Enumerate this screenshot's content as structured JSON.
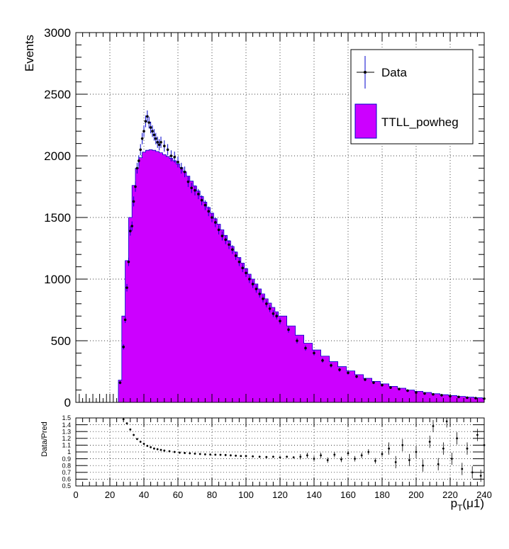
{
  "chart_data": [
    {
      "type": "bar",
      "subtype": "histogram-with-data-points",
      "title": "",
      "xlabel": "",
      "ylabel": "Events",
      "xlim": [
        0,
        240
      ],
      "ylim": [
        0,
        3000
      ],
      "x_ticks": [
        0,
        20,
        40,
        60,
        80,
        100,
        120,
        140,
        160,
        180,
        200,
        220,
        240
      ],
      "y_ticks": [
        0,
        500,
        1000,
        1500,
        2000,
        2500,
        3000
      ],
      "grid": true,
      "legend": {
        "position": "top-right",
        "entries": [
          "Data",
          "TTLL_powheg"
        ]
      },
      "series": [
        {
          "name": "TTLL_powheg",
          "style": "filled-histogram",
          "color": "#cc00ff",
          "points": [
            [
              26,
              180
            ],
            [
              28,
              700
            ],
            [
              30,
              1150
            ],
            [
              32,
              1500
            ],
            [
              34,
              1760
            ],
            [
              36,
              1900
            ],
            [
              38,
              1985
            ],
            [
              40,
              2030
            ],
            [
              42,
              2045
            ],
            [
              44,
              2050
            ],
            [
              46,
              2045
            ],
            [
              48,
              2035
            ],
            [
              50,
              2025
            ],
            [
              52,
              2010
            ],
            [
              54,
              1995
            ],
            [
              56,
              1980
            ],
            [
              58,
              1960
            ],
            [
              60,
              1935
            ],
            [
              62,
              1905
            ],
            [
              64,
              1870
            ],
            [
              66,
              1835
            ],
            [
              68,
              1795
            ],
            [
              70,
              1755
            ],
            [
              72,
              1715
            ],
            [
              74,
              1670
            ],
            [
              76,
              1625
            ],
            [
              78,
              1580
            ],
            [
              80,
              1535
            ],
            [
              82,
              1490
            ],
            [
              84,
              1445
            ],
            [
              86,
              1400
            ],
            [
              88,
              1355
            ],
            [
              90,
              1310
            ],
            [
              92,
              1265
            ],
            [
              94,
              1220
            ],
            [
              96,
              1175
            ],
            [
              98,
              1130
            ],
            [
              100,
              1085
            ],
            [
              102,
              1040
            ],
            [
              104,
              1000
            ],
            [
              106,
              960
            ],
            [
              108,
              920
            ],
            [
              110,
              880
            ],
            [
              112,
              840
            ],
            [
              114,
              805
            ],
            [
              116,
              770
            ],
            [
              118,
              735
            ],
            [
              120,
              700
            ],
            [
              125,
              620
            ],
            [
              130,
              545
            ],
            [
              135,
              480
            ],
            [
              140,
              425
            ],
            [
              145,
              375
            ],
            [
              150,
              330
            ],
            [
              155,
              290
            ],
            [
              160,
              255
            ],
            [
              165,
              225
            ],
            [
              170,
              195
            ],
            [
              175,
              170
            ],
            [
              180,
              150
            ],
            [
              185,
              130
            ],
            [
              190,
              115
            ],
            [
              195,
              100
            ],
            [
              200,
              90
            ],
            [
              205,
              80
            ],
            [
              210,
              70
            ],
            [
              215,
              62
            ],
            [
              220,
              55
            ],
            [
              225,
              48
            ],
            [
              230,
              42
            ],
            [
              235,
              37
            ],
            [
              240,
              33
            ]
          ]
        },
        {
          "name": "Data",
          "style": "markers-with-errorbars",
          "color": "#000000",
          "errorbar_color": "#0000cc",
          "points": [
            [
              26,
              160
            ],
            [
              28,
              450
            ],
            [
              29,
              670
            ],
            [
              30,
              930
            ],
            [
              31,
              1140
            ],
            [
              32,
              1390
            ],
            [
              33,
              1430
            ],
            [
              34,
              1630
            ],
            [
              35,
              1750
            ],
            [
              36,
              1900
            ],
            [
              37,
              1960
            ],
            [
              38,
              2050
            ],
            [
              39,
              2140
            ],
            [
              40,
              2200
            ],
            [
              41,
              2280
            ],
            [
              42,
              2320
            ],
            [
              43,
              2270
            ],
            [
              44,
              2230
            ],
            [
              45,
              2200
            ],
            [
              46,
              2170
            ],
            [
              47,
              2140
            ],
            [
              48,
              2110
            ],
            [
              49,
              2090
            ],
            [
              50,
              2110
            ],
            [
              52,
              2080
            ],
            [
              54,
              2050
            ],
            [
              56,
              2000
            ],
            [
              58,
              1990
            ],
            [
              60,
              1950
            ],
            [
              62,
              1900
            ],
            [
              64,
              1870
            ],
            [
              66,
              1790
            ],
            [
              68,
              1740
            ],
            [
              70,
              1720
            ],
            [
              72,
              1690
            ],
            [
              74,
              1640
            ],
            [
              76,
              1600
            ],
            [
              78,
              1550
            ],
            [
              80,
              1500
            ],
            [
              82,
              1460
            ],
            [
              84,
              1400
            ],
            [
              86,
              1350
            ],
            [
              88,
              1320
            ],
            [
              90,
              1280
            ],
            [
              92,
              1240
            ],
            [
              94,
              1190
            ],
            [
              96,
              1140
            ],
            [
              98,
              1090
            ],
            [
              100,
              1050
            ],
            [
              102,
              1000
            ],
            [
              104,
              960
            ],
            [
              106,
              920
            ],
            [
              108,
              880
            ],
            [
              110,
              840
            ],
            [
              112,
              800
            ],
            [
              114,
              760
            ],
            [
              116,
              720
            ],
            [
              118,
              700
            ],
            [
              120,
              660
            ],
            [
              125,
              590
            ],
            [
              130,
              500
            ],
            [
              135,
              440
            ],
            [
              140,
              400
            ],
            [
              145,
              340
            ],
            [
              150,
              300
            ],
            [
              155,
              265
            ],
            [
              160,
              240
            ],
            [
              165,
              210
            ],
            [
              170,
              185
            ],
            [
              175,
              160
            ],
            [
              180,
              140
            ],
            [
              185,
              120
            ],
            [
              190,
              108
            ],
            [
              195,
              95
            ],
            [
              200,
              80
            ],
            [
              205,
              72
            ],
            [
              210,
              65
            ],
            [
              215,
              58
            ],
            [
              220,
              50
            ],
            [
              225,
              44
            ],
            [
              230,
              38
            ],
            [
              235,
              34
            ],
            [
              240,
              30
            ]
          ]
        }
      ]
    },
    {
      "type": "scatter",
      "subtype": "ratio-panel",
      "title": "",
      "xlabel": "p_T(μ1)",
      "ylabel": "Data/Pred",
      "xlim": [
        0,
        240
      ],
      "ylim": [
        0.5,
        1.5
      ],
      "x_ticks": [
        0,
        20,
        40,
        60,
        80,
        100,
        120,
        140,
        160,
        180,
        200,
        220,
        240
      ],
      "y_ticks": [
        0.5,
        0.6,
        0.7,
        0.8,
        0.9,
        1,
        1.1,
        1.2,
        1.3,
        1.4,
        1.5
      ],
      "grid": true,
      "series": [
        {
          "name": "",
          "style": "markers-with-errorbars",
          "color": "#000000",
          "points": [
            [
              28,
              1.48
            ],
            [
              30,
              1.42
            ],
            [
              32,
              1.33
            ],
            [
              34,
              1.25
            ],
            [
              36,
              1.19
            ],
            [
              38,
              1.15
            ],
            [
              40,
              1.12
            ],
            [
              42,
              1.09
            ],
            [
              44,
              1.07
            ],
            [
              46,
              1.05
            ],
            [
              48,
              1.04
            ],
            [
              50,
              1.03
            ],
            [
              52,
              1.02
            ],
            [
              55,
              1.01
            ],
            [
              58,
              1.0
            ],
            [
              61,
              0.99
            ],
            [
              64,
              0.985
            ],
            [
              67,
              0.98
            ],
            [
              70,
              0.975
            ],
            [
              73,
              0.97
            ],
            [
              76,
              0.965
            ],
            [
              79,
              0.962
            ],
            [
              82,
              0.96
            ],
            [
              85,
              0.958
            ],
            [
              88,
              0.955
            ],
            [
              91,
              0.95
            ],
            [
              94,
              0.945
            ],
            [
              97,
              0.94
            ],
            [
              100,
              0.94
            ],
            [
              104,
              0.935
            ],
            [
              108,
              0.93
            ],
            [
              112,
              0.925
            ],
            [
              116,
              0.93
            ],
            [
              120,
              0.92
            ],
            [
              124,
              0.93
            ],
            [
              128,
              0.92
            ],
            [
              132,
              0.93
            ],
            [
              136,
              0.95
            ],
            [
              140,
              0.9
            ],
            [
              144,
              0.95
            ],
            [
              148,
              0.88
            ],
            [
              152,
              0.96
            ],
            [
              156,
              0.89
            ],
            [
              160,
              0.98
            ],
            [
              164,
              0.9
            ],
            [
              168,
              0.95
            ],
            [
              172,
              1.0
            ],
            [
              176,
              0.87
            ],
            [
              180,
              0.97
            ],
            [
              184,
              1.05
            ],
            [
              188,
              0.85
            ],
            [
              192,
              1.1
            ],
            [
              196,
              0.88
            ],
            [
              200,
              1.0
            ],
            [
              204,
              0.8
            ],
            [
              208,
              1.15
            ],
            [
              210,
              1.38
            ],
            [
              213,
              0.82
            ],
            [
              216,
              1.05
            ],
            [
              218,
              1.45
            ],
            [
              221,
              0.9
            ],
            [
              224,
              1.2
            ],
            [
              227,
              0.75
            ],
            [
              230,
              1.05
            ],
            [
              233,
              0.7
            ],
            [
              236,
              1.25
            ],
            [
              238,
              0.65
            ],
            [
              240,
              1.1
            ]
          ]
        }
      ]
    }
  ]
}
